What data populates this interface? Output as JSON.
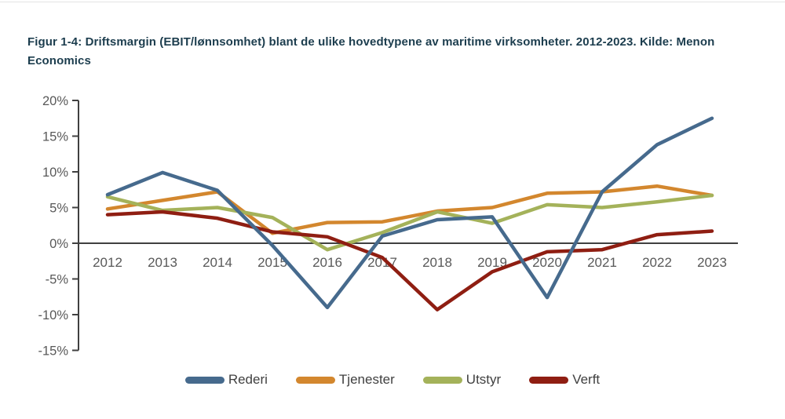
{
  "page": {
    "title": "Figur 1-4: Driftsmargin (EBIT/lønnsomhet) blant de ulike hovedtypene av maritime virksomheter. 2012-2023. Kilde: Menon Economics"
  },
  "chart_data": {
    "type": "line",
    "title": "Figur 1-4: Driftsmargin (EBIT/lønnsomhet) blant de ulike hovedtypene av maritime virksomheter. 2012-2023. Kilde: Menon Economics",
    "xlabel": "",
    "ylabel": "",
    "x": [
      2012,
      2013,
      2014,
      2015,
      2016,
      2017,
      2018,
      2019,
      2020,
      2021,
      2022,
      2023
    ],
    "series": [
      {
        "name": "Rederi",
        "color": "#466A8D",
        "values": [
          6.8,
          9.9,
          7.4,
          -0.3,
          -9.0,
          1.0,
          3.3,
          3.7,
          -7.6,
          7.2,
          13.8,
          17.5
        ]
      },
      {
        "name": "Tjenester",
        "color": "#D3872E",
        "values": [
          4.8,
          6.0,
          7.2,
          1.4,
          2.9,
          3.0,
          4.5,
          5.0,
          7.0,
          7.2,
          8.0,
          6.7
        ]
      },
      {
        "name": "Utstyr",
        "color": "#A4B25A",
        "values": [
          6.5,
          4.6,
          5.0,
          3.6,
          -0.9,
          1.5,
          4.4,
          2.8,
          5.4,
          5.0,
          5.8,
          6.7
        ]
      },
      {
        "name": "Verft",
        "color": "#8F1E12",
        "values": [
          4.0,
          4.4,
          3.5,
          1.6,
          0.9,
          -2.0,
          -9.3,
          -4.0,
          -1.2,
          -0.9,
          1.2,
          1.7
        ]
      }
    ],
    "ylim": [
      -15,
      20
    ],
    "ytick_step": 5,
    "ytick_labels": [
      "20%",
      "15%",
      "10%",
      "5%",
      "0%",
      "-5%",
      "-10%",
      "-15%"
    ],
    "grid": false,
    "legend_position": "bottom",
    "axis_color": "#404040",
    "tick_label_color": "#595959"
  }
}
